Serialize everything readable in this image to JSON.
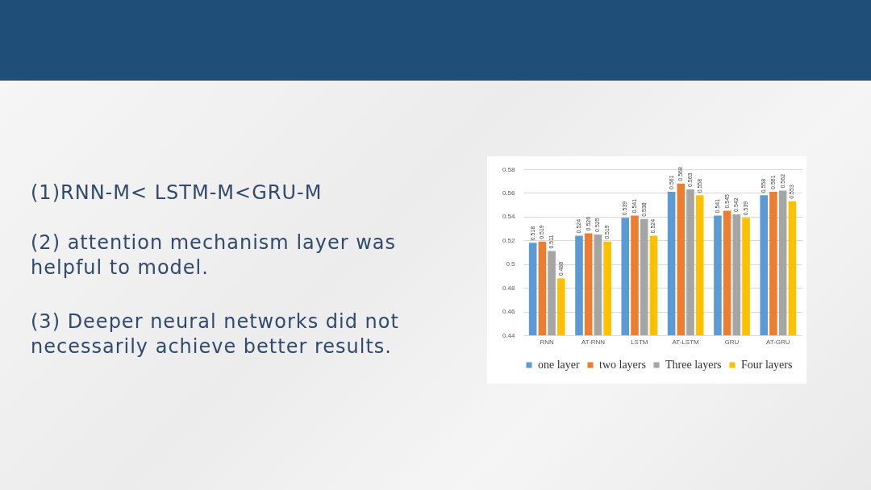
{
  "chart_data": {
    "type": "bar",
    "categories": [
      "RNN",
      "AT-RNN",
      "LSTM",
      "AT-LSTM",
      "GRU",
      "AT-GRU"
    ],
    "series": [
      {
        "name": "one layer",
        "color": "#5b9bd5",
        "values": [
          0.518,
          0.524,
          0.539,
          0.561,
          0.541,
          0.558
        ]
      },
      {
        "name": "two layers",
        "color": "#ed7d31",
        "values": [
          0.519,
          0.526,
          0.541,
          0.568,
          0.545,
          0.561
        ]
      },
      {
        "name": "Three layers",
        "color": "#a5a5a5",
        "values": [
          0.511,
          0.525,
          0.538,
          0.563,
          0.542,
          0.562
        ]
      },
      {
        "name": "Four layers",
        "color": "#ffc000",
        "values": [
          0.488,
          0.519,
          0.524,
          0.558,
          0.539,
          0.553
        ]
      }
    ],
    "ylim": [
      0.44,
      0.58
    ],
    "yticks": [
      0.44,
      0.46,
      0.48,
      0.5,
      0.52,
      0.54,
      0.56,
      0.58
    ],
    "grid": "y",
    "legend": "bottom",
    "data_labels": true,
    "annotations": [
      "(1)RNN-M< LSTM-M<GRU-M",
      "(2) attention mechanism layer was helpful to model.",
      "(3) Deeper neural networks did not necessarily achieve better results."
    ]
  }
}
